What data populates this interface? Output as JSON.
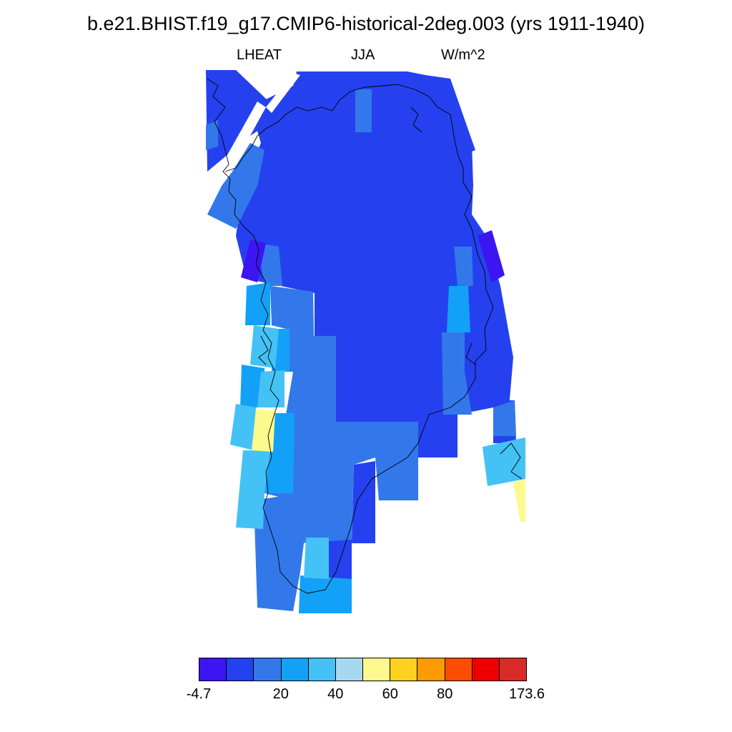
{
  "title": "b.e21.BHIST.f19_g17.CMIP6-historical-2deg.003 (yrs 1911-1940)",
  "subtitle": {
    "variable": "LHEAT",
    "season": "JJA",
    "units": "W/m^2"
  },
  "colorbar": {
    "colors": [
      "#3c15f2",
      "#2541ef",
      "#3278ea",
      "#13a1f8",
      "#44c2f6",
      "#a8d8f0",
      "#fdf98e",
      "#fdd11f",
      "#fd9b04",
      "#fd4d04",
      "#ee0000",
      "#d92a2a"
    ],
    "labels": [
      {
        "text": "-4.7",
        "boundary": 0
      },
      {
        "text": "20",
        "boundary": 3
      },
      {
        "text": "40",
        "boundary": 5
      },
      {
        "text": "60",
        "boundary": 7
      },
      {
        "text": "80",
        "boundary": 9
      },
      {
        "text": "173.6",
        "boundary": 12
      }
    ]
  },
  "map_data": {
    "region": "Greenland",
    "field": "LHEAT",
    "dominant_level_color": "#2541ef"
  }
}
